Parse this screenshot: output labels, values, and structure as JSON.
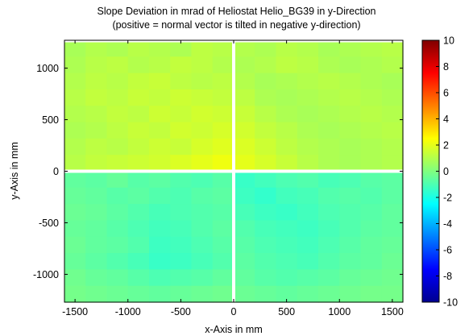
{
  "chart_data": {
    "type": "heatmap",
    "title": "Slope Deviation in mrad of Heliostat Helio_BG39 in y-Direction",
    "subtitle": "(positive = normal vector is tilted in negative y-direction)",
    "xlabel": "x-Axis in mm",
    "ylabel": "y-Axis in mm",
    "xlim": [
      -1600,
      1600
    ],
    "ylim": [
      -1270,
      1270
    ],
    "x_ticks": [
      -1500,
      -1000,
      -500,
      0,
      500,
      1000,
      1500
    ],
    "y_ticks": [
      -1000,
      -500,
      0,
      500,
      1000
    ],
    "colorbar": {
      "colormap": "jet",
      "range": [
        -10,
        10
      ],
      "ticks": [
        -10,
        -8,
        -6,
        -4,
        -2,
        0,
        2,
        4,
        6,
        8,
        10
      ]
    },
    "gaps": {
      "vertical_at_x": 0,
      "horizontal_at_y": 0,
      "color": "#ffffff"
    },
    "z": [
      [
        0.8,
        1.0,
        0.9,
        1.1,
        1.0,
        0.9,
        1.2,
        1.1,
        1.0,
        0.9,
        1.1,
        1.0,
        0.8,
        0.9,
        1.0,
        1.1
      ],
      [
        0.9,
        1.1,
        1.2,
        1.0,
        1.1,
        1.3,
        1.2,
        1.0,
        0.9,
        1.0,
        1.2,
        1.1,
        0.9,
        0.8,
        0.9,
        1.0
      ],
      [
        1.0,
        1.2,
        1.1,
        1.3,
        1.4,
        1.2,
        1.1,
        1.2,
        1.0,
        0.8,
        0.9,
        1.0,
        1.1,
        1.0,
        0.9,
        0.8
      ],
      [
        1.1,
        1.3,
        1.2,
        1.4,
        1.3,
        1.5,
        1.4,
        1.3,
        1.2,
        0.9,
        0.8,
        0.9,
        1.0,
        1.1,
        1.0,
        0.9
      ],
      [
        1.0,
        1.1,
        1.3,
        1.2,
        1.5,
        1.4,
        1.6,
        1.5,
        1.4,
        1.1,
        0.9,
        0.8,
        0.9,
        1.0,
        1.1,
        1.0
      ],
      [
        0.9,
        1.0,
        1.2,
        1.4,
        1.3,
        1.6,
        1.5,
        1.7,
        1.6,
        1.3,
        1.1,
        0.9,
        0.8,
        0.9,
        1.0,
        1.1
      ],
      [
        1.0,
        1.2,
        1.1,
        1.3,
        1.5,
        1.4,
        1.7,
        1.9,
        1.8,
        1.5,
        1.2,
        1.0,
        0.9,
        0.8,
        0.9,
        1.0
      ],
      [
        1.1,
        1.3,
        1.4,
        1.5,
        1.6,
        1.8,
        2.0,
        2.2,
        2.0,
        1.7,
        1.4,
        1.1,
        0.9,
        0.8,
        0.9,
        1.0
      ],
      [
        -0.6,
        -0.7,
        -0.5,
        -0.8,
        -0.7,
        -0.9,
        -1.0,
        -0.8,
        -1.4,
        -1.2,
        -1.0,
        -0.9,
        -1.1,
        -1.0,
        -0.8,
        -0.7
      ],
      [
        -0.5,
        -0.6,
        -0.8,
        -0.7,
        -0.9,
        -1.0,
        -0.8,
        -0.7,
        -1.3,
        -1.5,
        -1.2,
        -1.1,
        -0.9,
        -0.8,
        -0.9,
        -0.7
      ],
      [
        -0.4,
        -0.5,
        -0.7,
        -0.9,
        -1.1,
        -1.0,
        -0.9,
        -0.8,
        -1.1,
        -1.3,
        -1.4,
        -1.2,
        -1.0,
        -0.9,
        -0.8,
        -0.6
      ],
      [
        -0.5,
        -0.6,
        -0.8,
        -1.0,
        -1.2,
        -1.1,
        -0.9,
        -0.7,
        -0.9,
        -1.1,
        -1.2,
        -1.3,
        -1.1,
        -0.9,
        -0.7,
        -0.6
      ],
      [
        -0.4,
        -0.6,
        -0.7,
        -0.9,
        -1.3,
        -1.2,
        -1.0,
        -0.8,
        -0.8,
        -1.0,
        -1.1,
        -1.2,
        -1.0,
        -0.8,
        -0.6,
        -0.5
      ],
      [
        -0.5,
        -0.7,
        -0.9,
        -1.1,
        -1.4,
        -1.3,
        -1.1,
        -0.9,
        -0.7,
        -0.9,
        -1.0,
        -1.1,
        -0.9,
        -0.7,
        -0.6,
        -0.4
      ],
      [
        -0.3,
        -0.5,
        -0.6,
        -0.8,
        -1.0,
        -0.9,
        -0.8,
        -0.6,
        -0.6,
        -0.8,
        -0.9,
        -0.8,
        -0.7,
        -0.5,
        -0.4,
        -0.3
      ],
      [
        -0.2,
        -0.3,
        -0.4,
        -0.5,
        -0.6,
        -0.5,
        -0.4,
        -0.3,
        -0.4,
        -0.5,
        -0.6,
        -0.5,
        -0.4,
        -0.3,
        -0.2,
        -0.2
      ]
    ]
  }
}
